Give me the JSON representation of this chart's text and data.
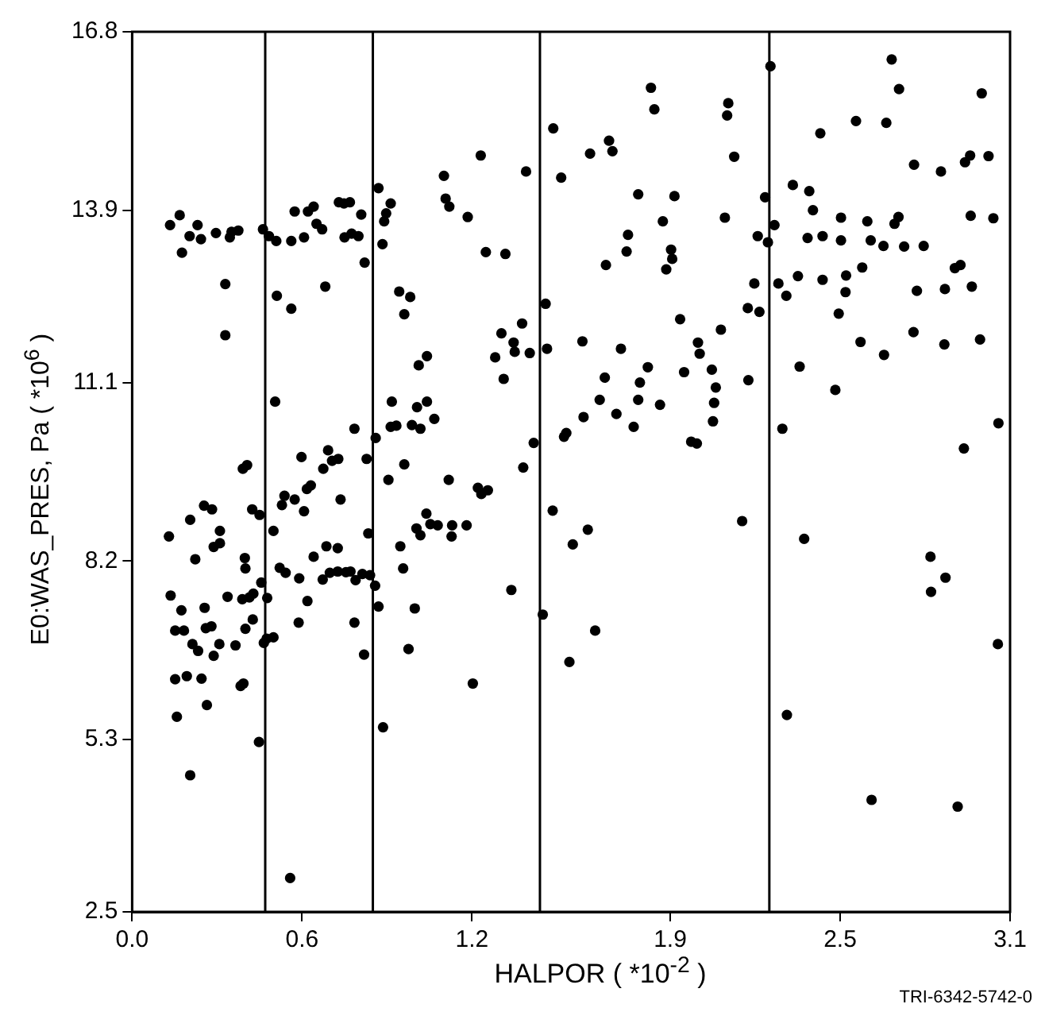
{
  "chart_data": {
    "type": "scatter",
    "xlabel": "HALPOR ( *10$^{-2}$ )",
    "ylabel": "E0:WAS_PRES, Pa ( *10$^{6}$ )",
    "annotations": [
      "TRI-6342-5742-0"
    ],
    "xlim": [
      0,
      3.1
    ],
    "ylim": [
      2.5,
      16.8
    ],
    "xticks": [
      {
        "value": 0,
        "label": "0.0"
      },
      0.6,
      1.2,
      1.9,
      2.5,
      3.1
    ],
    "yticks": [
      2.5,
      5.3,
      8.2,
      11.1,
      13.9,
      16.8
    ],
    "grid": false,
    "legend": false,
    "marker": "circle",
    "ref_lines": [
      {
        "axis": "x",
        "value": 0.47,
        "color": "#000000"
      },
      {
        "axis": "x",
        "value": 0.85,
        "color": "#000000"
      },
      {
        "axis": "x",
        "value": 1.44,
        "color": "#000000"
      },
      {
        "axis": "x",
        "value": 2.25,
        "color": "#000000"
      }
    ],
    "series": [
      {
        "color": "#000000",
        "x": [
          0.134,
          0.168,
          0.176,
          0.203,
          0.231,
          0.243,
          0.296,
          0.329,
          0.329,
          0.345,
          0.351,
          0.375,
          0.391,
          0.406,
          0.462,
          0.483,
          0.509,
          0.511,
          0.505,
          0.562,
          0.562,
          0.574,
          0.607,
          0.598,
          0.621,
          0.641,
          0.651,
          0.671,
          0.682,
          0.675,
          0.692,
          0.706,
          0.728,
          0.73,
          0.748,
          0.769,
          0.75,
          0.775,
          0.799,
          0.785,
          0.809,
          0.821,
          0.828,
          0.86,
          0.87,
          0.89,
          0.897,
          0.913,
          0.884,
          0.905,
          0.917,
          0.913,
          0.933,
          0.943,
          0.961,
          0.982,
          1.012,
          1.041,
          0.988,
          1.006,
          1.018,
          1.041,
          1.067,
          0.961,
          1.101,
          1.107,
          1.12,
          1.118,
          1.185,
          1.231,
          1.249,
          1.318,
          1.391,
          1.304,
          1.282,
          1.312,
          1.347,
          1.377,
          1.351,
          1.381,
          1.404,
          1.418,
          1.487,
          1.515,
          1.46,
          1.465,
          1.59,
          1.617,
          1.684,
          1.696,
          1.673,
          1.726,
          1.751,
          1.746,
          1.787,
          1.832,
          1.844,
          1.874,
          1.915,
          1.903,
          1.907,
          1.886,
          1.935,
          1.669,
          1.651,
          1.594,
          1.533,
          1.525,
          1.71,
          1.771,
          1.793,
          1.787,
          1.821,
          1.864,
          1.949,
          1.998,
          2.004,
          1.974,
          1.994,
          2.047,
          2.061,
          2.055,
          2.051,
          2.079,
          2.093,
          2.105,
          2.101,
          2.126,
          2.174,
          2.176,
          2.197,
          2.215,
          2.209,
          2.235,
          2.245,
          2.254,
          2.268,
          2.282,
          2.296,
          2.31,
          2.333,
          2.351,
          2.357,
          2.391,
          2.404,
          2.385,
          2.43,
          2.438,
          2.438,
          2.483,
          2.495,
          2.503,
          2.503,
          2.521,
          2.519,
          2.556,
          2.572,
          2.578,
          2.596,
          2.608,
          2.653,
          2.655,
          2.663,
          2.682,
          2.708,
          2.692,
          2.706,
          2.726,
          2.761,
          2.771,
          2.759,
          2.795,
          2.856,
          2.87,
          2.868,
          2.905,
          2.925,
          2.941,
          2.959,
          2.961,
          2.965,
          2.937,
          2.994,
          3.0,
          3.024,
          3.041,
          3.059,
          0.13,
          0.205,
          0.254,
          0.282,
          0.223,
          0.31,
          0.288,
          0.31,
          0.136,
          0.174,
          0.152,
          0.183,
          0.256,
          0.26,
          0.28,
          0.213,
          0.233,
          0.288,
          0.308,
          0.337,
          0.365,
          0.389,
          0.398,
          0.4,
          0.414,
          0.426,
          0.4,
          0.383,
          0.393,
          0.428,
          0.456,
          0.477,
          0.465,
          0.475,
          0.499,
          0.152,
          0.193,
          0.245,
          0.264,
          0.158,
          0.448,
          0.205,
          0.424,
          0.45,
          0.499,
          0.529,
          0.538,
          0.574,
          0.607,
          0.617,
          0.631,
          0.736,
          0.521,
          0.542,
          0.59,
          0.641,
          0.619,
          0.588,
          0.673,
          0.686,
          0.698,
          0.726,
          0.726,
          0.755,
          0.771,
          0.789,
          0.785,
          0.813,
          0.819,
          0.84,
          0.834,
          0.858,
          0.87,
          0.886,
          0.558,
          0.947,
          0.957,
          0.976,
          0.998,
          1.004,
          1.018,
          1.039,
          1.053,
          1.079,
          1.128,
          1.13,
          1.181,
          1.203,
          1.221,
          1.233,
          1.256,
          1.339,
          1.45,
          1.485,
          1.556,
          1.609,
          1.635,
          1.544,
          2.154,
          2.373,
          2.312,
          2.611,
          2.819,
          2.872,
          2.821,
          2.915,
          3.057
        ],
        "values": [
          13.66,
          13.82,
          13.21,
          13.48,
          13.66,
          13.43,
          13.53,
          12.7,
          11.87,
          13.46,
          13.55,
          13.57,
          9.7,
          9.76,
          13.59,
          13.48,
          13.4,
          12.51,
          10.79,
          12.3,
          13.4,
          13.88,
          13.46,
          9.89,
          13.88,
          13.96,
          13.68,
          13.59,
          12.66,
          9.7,
          10.0,
          9.83,
          9.86,
          14.03,
          14.01,
          14.03,
          13.46,
          13.52,
          13.48,
          10.35,
          13.83,
          13.05,
          9.86,
          10.2,
          14.26,
          13.72,
          13.85,
          14.01,
          13.35,
          9.52,
          10.79,
          10.38,
          10.4,
          12.58,
          12.21,
          12.49,
          11.38,
          11.53,
          10.41,
          10.7,
          10.35,
          10.79,
          10.51,
          9.77,
          14.46,
          14.09,
          13.96,
          9.52,
          13.79,
          14.79,
          13.22,
          13.19,
          14.53,
          11.9,
          11.51,
          11.16,
          11.75,
          12.06,
          11.6,
          9.72,
          11.58,
          10.12,
          15.23,
          14.43,
          12.38,
          11.65,
          11.77,
          14.82,
          15.03,
          14.86,
          13.01,
          11.65,
          13.5,
          13.23,
          14.16,
          15.89,
          15.54,
          13.72,
          14.13,
          13.26,
          13.11,
          12.94,
          12.13,
          11.18,
          10.82,
          10.54,
          10.28,
          10.22,
          10.59,
          10.38,
          11.1,
          10.82,
          11.35,
          10.74,
          11.27,
          11.75,
          11.57,
          10.14,
          10.11,
          11.31,
          11.02,
          10.77,
          10.47,
          11.96,
          13.78,
          15.64,
          15.44,
          14.77,
          12.31,
          11.14,
          12.71,
          12.25,
          13.48,
          14.11,
          13.38,
          16.24,
          13.66,
          12.71,
          10.35,
          12.51,
          14.31,
          12.83,
          11.36,
          14.21,
          13.9,
          13.45,
          15.15,
          13.48,
          12.77,
          10.98,
          12.22,
          13.78,
          13.41,
          12.84,
          12.57,
          15.35,
          11.76,
          12.97,
          13.72,
          13.41,
          13.32,
          11.55,
          15.32,
          16.35,
          15.87,
          13.68,
          13.79,
          13.31,
          14.64,
          12.59,
          11.92,
          13.32,
          14.53,
          12.62,
          11.72,
          12.96,
          13.01,
          14.68,
          14.79,
          13.81,
          12.66,
          10.03,
          11.8,
          15.8,
          14.78,
          13.77,
          10.44,
          8.6,
          8.87,
          9.1,
          9.04,
          8.23,
          8.69,
          8.43,
          8.49,
          7.64,
          7.4,
          7.07,
          7.07,
          7.44,
          7.11,
          7.14,
          6.85,
          6.74,
          6.66,
          6.85,
          7.62,
          6.83,
          7.58,
          8.25,
          8.08,
          7.61,
          7.25,
          7.1,
          6.17,
          6.21,
          7.67,
          7.85,
          7.6,
          6.87,
          6.94,
          6.96,
          6.28,
          6.33,
          6.29,
          5.86,
          5.67,
          5.26,
          4.72,
          9.04,
          8.95,
          8.69,
          9.11,
          9.26,
          9.2,
          9.01,
          9.37,
          9.43,
          9.2,
          8.09,
          8.01,
          7.92,
          8.27,
          7.55,
          7.2,
          7.9,
          8.44,
          8.01,
          8.03,
          8.41,
          8.02,
          8.03,
          7.89,
          7.2,
          7.99,
          6.68,
          7.97,
          8.65,
          7.8,
          7.46,
          5.5,
          3.05,
          8.44,
          8.08,
          6.77,
          7.43,
          8.73,
          8.62,
          8.97,
          8.8,
          8.78,
          8.6,
          8.78,
          8.78,
          6.21,
          9.39,
          9.29,
          9.35,
          7.73,
          7.33,
          9.02,
          8.47,
          8.71,
          7.07,
          6.56,
          8.85,
          8.56,
          5.7,
          4.32,
          8.27,
          7.93,
          7.7,
          4.21,
          6.85
        ]
      }
    ]
  }
}
